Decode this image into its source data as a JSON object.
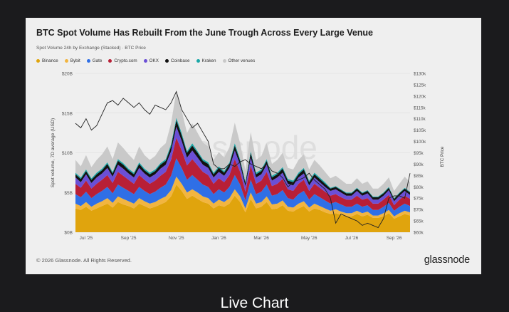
{
  "title": "BTC Spot Volume Has Rebuilt From the June Trough Across Every Large Venue",
  "subtitle": "Spot Volume 24h by Exchange (Stacked) · BTC Price",
  "footer": {
    "copyright": "© 2026 Glassnode. All Rights Reserved.",
    "brand": "glassnode"
  },
  "watermark": "glassnode",
  "bottom_label": "Live Chart",
  "chart_data": {
    "type": "area",
    "stacked": true,
    "ylabel": "Spot volume, 7D average (USD)",
    "y2label": "BTC Price",
    "ylim": [
      0,
      20
    ],
    "y2lim": [
      60,
      130
    ],
    "y_ticks": [
      {
        "v": 0,
        "label": "$0B"
      },
      {
        "v": 5,
        "label": "$5B"
      },
      {
        "v": 10,
        "label": "$10B"
      },
      {
        "v": 15,
        "label": "$15B"
      },
      {
        "v": 20,
        "label": "$20B"
      }
    ],
    "y2_ticks": [
      {
        "v": 130,
        "label": "$130k"
      },
      {
        "v": 125,
        "label": "$125k"
      },
      {
        "v": 120,
        "label": "$120k"
      },
      {
        "v": 115,
        "label": "$115k"
      },
      {
        "v": 110,
        "label": "$110k"
      },
      {
        "v": 105,
        "label": "$105k"
      },
      {
        "v": 100,
        "label": "$100k"
      },
      {
        "v": 95,
        "label": "$95k"
      },
      {
        "v": 90,
        "label": "$90k"
      },
      {
        "v": 85,
        "label": "$85k"
      },
      {
        "v": 80,
        "label": "$80k"
      },
      {
        "v": 75,
        "label": "$75k"
      },
      {
        "v": 70,
        "label": "$70k"
      },
      {
        "v": 65,
        "label": "$65k"
      },
      {
        "v": 60,
        "label": "$60k"
      }
    ],
    "x_ticks": [
      {
        "i": 2,
        "label": "Jul '25"
      },
      {
        "i": 10,
        "label": "Sep '25"
      },
      {
        "i": 19,
        "label": "Nov '25"
      },
      {
        "i": 27,
        "label": "Jan '26"
      },
      {
        "i": 35,
        "label": "Mar '26"
      },
      {
        "i": 44,
        "label": "May '26"
      },
      {
        "i": 52,
        "label": "Jul '26"
      },
      {
        "i": 60,
        "label": "Sep '26"
      }
    ],
    "grid": true,
    "legend_position": "top-left",
    "series": [
      {
        "name": "Binance",
        "color": "#e0a40d",
        "values": [
          3.0,
          2.8,
          3.2,
          2.7,
          3.0,
          3.3,
          3.6,
          3.1,
          3.8,
          3.5,
          3.3,
          3.0,
          3.6,
          3.3,
          3.0,
          3.2,
          3.5,
          3.8,
          4.5,
          6.0,
          5.2,
          4.2,
          4.6,
          4.2,
          3.8,
          3.6,
          3.0,
          3.4,
          3.2,
          3.6,
          4.6,
          3.8,
          2.5,
          4.2,
          3.0,
          3.2,
          3.8,
          2.9,
          3.0,
          3.4,
          2.7,
          2.6,
          3.0,
          3.3,
          2.6,
          3.0,
          2.8,
          2.5,
          2.3,
          2.4,
          2.2,
          2.0,
          2.0,
          2.3,
          2.0,
          2.2,
          1.8,
          1.8,
          2.0,
          2.4,
          1.7,
          2.0,
          2.3,
          2.1
        ]
      },
      {
        "name": "Bybit",
        "color": "#f2b540",
        "values": [
          0.6,
          0.5,
          0.6,
          0.5,
          0.6,
          0.6,
          0.7,
          0.6,
          0.7,
          0.7,
          0.6,
          0.6,
          0.7,
          0.6,
          0.6,
          0.6,
          0.7,
          0.7,
          0.8,
          1.0,
          0.9,
          0.8,
          0.8,
          0.8,
          0.7,
          0.7,
          0.6,
          0.7,
          0.6,
          0.7,
          0.8,
          0.7,
          0.5,
          0.8,
          0.6,
          0.6,
          0.7,
          0.6,
          0.6,
          0.6,
          0.5,
          0.5,
          0.6,
          0.6,
          0.5,
          0.6,
          0.5,
          0.5,
          0.4,
          0.5,
          0.4,
          0.4,
          0.4,
          0.4,
          0.4,
          0.4,
          0.3,
          0.3,
          0.4,
          0.4,
          0.3,
          0.4,
          0.4,
          0.4
        ]
      },
      {
        "name": "Gate",
        "color": "#2f6fe6",
        "values": [
          1.2,
          1.1,
          1.3,
          1.1,
          1.2,
          1.3,
          1.4,
          1.2,
          1.5,
          1.4,
          1.3,
          1.2,
          1.4,
          1.3,
          1.2,
          1.3,
          1.4,
          1.5,
          1.8,
          2.3,
          2.0,
          1.6,
          1.8,
          1.6,
          1.5,
          1.4,
          1.2,
          1.3,
          1.2,
          1.4,
          1.8,
          1.5,
          1.0,
          1.6,
          1.2,
          1.3,
          1.5,
          1.1,
          1.2,
          1.3,
          1.1,
          1.0,
          1.2,
          1.3,
          1.0,
          1.2,
          1.1,
          1.0,
          0.9,
          0.9,
          0.9,
          0.8,
          0.8,
          0.9,
          0.8,
          0.8,
          0.7,
          0.7,
          0.8,
          0.9,
          0.7,
          0.8,
          0.9,
          0.8
        ]
      },
      {
        "name": "Crypto.com",
        "color": "#b81f36",
        "values": [
          1.3,
          1.2,
          1.4,
          1.2,
          1.3,
          1.4,
          1.5,
          1.3,
          1.6,
          1.5,
          1.4,
          1.3,
          1.5,
          1.4,
          1.3,
          1.4,
          1.5,
          1.6,
          2.0,
          2.6,
          2.2,
          1.8,
          2.0,
          1.8,
          1.6,
          1.5,
          1.3,
          1.4,
          1.3,
          1.5,
          2.0,
          1.6,
          1.1,
          1.8,
          1.3,
          1.4,
          1.6,
          1.2,
          1.3,
          1.4,
          1.1,
          1.1,
          1.3,
          1.4,
          1.1,
          1.3,
          1.2,
          1.1,
          1.0,
          1.0,
          0.9,
          0.9,
          0.9,
          1.0,
          0.9,
          0.9,
          0.8,
          0.8,
          0.9,
          1.0,
          0.7,
          0.9,
          1.0,
          0.9
        ]
      },
      {
        "name": "OKX",
        "color": "#6b4fd6",
        "values": [
          0.8,
          0.7,
          0.8,
          0.7,
          0.8,
          0.8,
          0.9,
          0.8,
          0.9,
          0.9,
          0.8,
          0.8,
          0.9,
          0.8,
          0.8,
          0.8,
          0.9,
          0.9,
          1.1,
          1.4,
          1.2,
          1.0,
          1.1,
          1.0,
          0.9,
          0.9,
          0.8,
          0.8,
          0.8,
          0.9,
          1.1,
          0.9,
          0.7,
          1.0,
          0.8,
          0.8,
          0.9,
          0.7,
          0.8,
          0.8,
          0.7,
          0.7,
          0.8,
          0.8,
          0.7,
          0.8,
          0.7,
          0.6,
          0.6,
          0.6,
          0.6,
          0.5,
          0.5,
          0.6,
          0.5,
          0.6,
          0.5,
          0.5,
          0.5,
          0.6,
          0.5,
          0.5,
          0.6,
          0.5
        ]
      },
      {
        "name": "Coinbase",
        "color": "#111111",
        "values": [
          0.4,
          0.4,
          0.4,
          0.4,
          0.4,
          0.4,
          0.5,
          0.4,
          0.5,
          0.5,
          0.4,
          0.4,
          0.5,
          0.4,
          0.4,
          0.4,
          0.5,
          0.5,
          0.6,
          0.8,
          0.7,
          0.6,
          0.6,
          0.6,
          0.5,
          0.5,
          0.4,
          0.5,
          0.4,
          0.5,
          0.6,
          0.5,
          0.4,
          0.6,
          0.4,
          0.4,
          0.5,
          0.4,
          0.4,
          0.5,
          0.4,
          0.4,
          0.4,
          0.5,
          0.4,
          0.4,
          0.4,
          0.4,
          0.3,
          0.3,
          0.3,
          0.3,
          0.3,
          0.3,
          0.3,
          0.3,
          0.3,
          0.3,
          0.3,
          0.3,
          0.3,
          0.3,
          0.3,
          0.3
        ]
      },
      {
        "name": "Kraken",
        "color": "#1aa7a7",
        "values": [
          0.2,
          0.2,
          0.2,
          0.2,
          0.2,
          0.2,
          0.2,
          0.2,
          0.2,
          0.2,
          0.2,
          0.2,
          0.2,
          0.2,
          0.2,
          0.2,
          0.2,
          0.2,
          0.3,
          0.3,
          0.3,
          0.2,
          0.3,
          0.2,
          0.2,
          0.2,
          0.2,
          0.2,
          0.2,
          0.2,
          0.3,
          0.2,
          0.2,
          0.2,
          0.2,
          0.2,
          0.2,
          0.2,
          0.2,
          0.2,
          0.2,
          0.2,
          0.2,
          0.2,
          0.2,
          0.2,
          0.2,
          0.2,
          0.1,
          0.1,
          0.1,
          0.1,
          0.1,
          0.1,
          0.1,
          0.1,
          0.1,
          0.1,
          0.1,
          0.1,
          0.1,
          0.1,
          0.1,
          0.1
        ]
      },
      {
        "name": "Other venues",
        "color": "#c9c9c9",
        "values": [
          1.6,
          1.4,
          1.8,
          1.4,
          1.6,
          1.8,
          2.0,
          1.6,
          2.1,
          1.9,
          1.8,
          1.6,
          2.0,
          1.7,
          1.6,
          1.7,
          1.9,
          2.0,
          2.6,
          3.4,
          2.8,
          2.3,
          2.5,
          2.3,
          2.1,
          2.0,
          1.6,
          1.8,
          1.7,
          1.9,
          2.6,
          2.0,
          1.4,
          2.4,
          1.6,
          1.7,
          2.0,
          1.5,
          1.6,
          1.8,
          1.4,
          1.4,
          1.6,
          1.7,
          1.4,
          1.6,
          1.5,
          1.3,
          1.2,
          1.3,
          1.2,
          1.1,
          1.1,
          1.2,
          1.1,
          1.1,
          1.0,
          1.0,
          1.1,
          1.2,
          0.9,
          1.1,
          1.4,
          1.2
        ]
      }
    ],
    "price": {
      "name": "BTC Price",
      "color": "#222222",
      "values": [
        108,
        106,
        110,
        105,
        107,
        112,
        117,
        118,
        116,
        119,
        117,
        115,
        117,
        114,
        112,
        116,
        115,
        114,
        117,
        122,
        114,
        110,
        106,
        108,
        104,
        100,
        90,
        88,
        88,
        90,
        89,
        91,
        92,
        90,
        89,
        88,
        90,
        87,
        86,
        84,
        80,
        82,
        83,
        84,
        86,
        83,
        81,
        79,
        75,
        64,
        68,
        67,
        66,
        65,
        63,
        64,
        63,
        62,
        66,
        75,
        76,
        76,
        75,
        86
      ]
    }
  }
}
